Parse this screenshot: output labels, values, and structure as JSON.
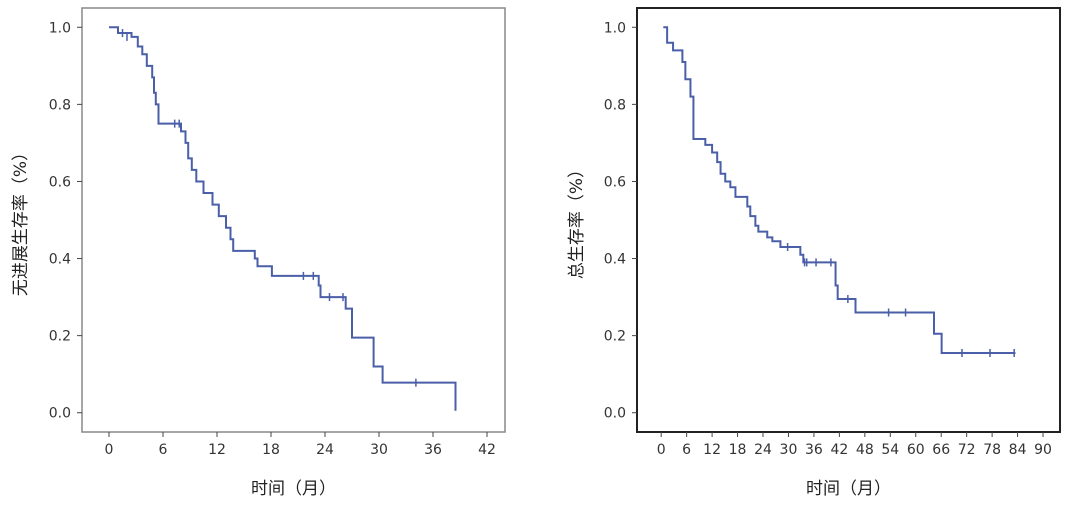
{
  "chart_data": [
    {
      "type": "line",
      "subtype": "kaplan-meier-step",
      "title": "",
      "xlabel": "时间（月）",
      "ylabel": "无进展生存率（%）",
      "xlim": [
        -3,
        44
      ],
      "ylim": [
        -0.05,
        1.05
      ],
      "xticks": [
        0,
        6,
        12,
        18,
        24,
        30,
        36,
        42
      ],
      "yticks": [
        "0.0",
        "0.2",
        "0.4",
        "0.6",
        "0.8",
        "1.0"
      ],
      "color": "#4a5fa8",
      "steps": [
        [
          0,
          1.0
        ],
        [
          1.0,
          0.985
        ],
        [
          2.5,
          0.975
        ],
        [
          3.2,
          0.95
        ],
        [
          3.7,
          0.93
        ],
        [
          4.2,
          0.9
        ],
        [
          4.8,
          0.87
        ],
        [
          5.0,
          0.83
        ],
        [
          5.2,
          0.8
        ],
        [
          5.5,
          0.75
        ],
        [
          8.0,
          0.73
        ],
        [
          8.5,
          0.7
        ],
        [
          8.8,
          0.66
        ],
        [
          9.2,
          0.63
        ],
        [
          9.7,
          0.6
        ],
        [
          10.5,
          0.57
        ],
        [
          11.5,
          0.54
        ],
        [
          12.2,
          0.51
        ],
        [
          13.0,
          0.48
        ],
        [
          13.5,
          0.45
        ],
        [
          13.8,
          0.42
        ],
        [
          16.2,
          0.4
        ],
        [
          16.5,
          0.38
        ],
        [
          18.1,
          0.355
        ],
        [
          23.3,
          0.33
        ],
        [
          23.5,
          0.3
        ],
        [
          26.3,
          0.27
        ],
        [
          27.0,
          0.195
        ],
        [
          29.4,
          0.12
        ],
        [
          30.4,
          0.078
        ],
        [
          38.5,
          0.005
        ]
      ],
      "end": 38.5,
      "censored": [
        [
          1.5,
          0.985
        ],
        [
          2.0,
          0.975
        ],
        [
          7.3,
          0.75
        ],
        [
          7.8,
          0.75
        ],
        [
          21.6,
          0.355
        ],
        [
          22.7,
          0.355
        ],
        [
          24.5,
          0.3
        ],
        [
          26.0,
          0.3
        ],
        [
          34.1,
          0.078
        ]
      ]
    },
    {
      "type": "line",
      "subtype": "kaplan-meier-step",
      "title": "",
      "xlabel": "时间（月）",
      "ylabel": "总生存率（%）",
      "xlim": [
        -5.7,
        94
      ],
      "ylim": [
        -0.05,
        1.05
      ],
      "xticks": [
        0,
        6,
        12,
        18,
        24,
        30,
        36,
        42,
        48,
        54,
        60,
        66,
        72,
        78,
        84,
        90
      ],
      "yticks": [
        "0.0",
        "0.2",
        "0.4",
        "0.6",
        "0.8",
        "1.0"
      ],
      "color": "#4a5fa8",
      "steps": [
        [
          0.5,
          1.0
        ],
        [
          1.4,
          0.96
        ],
        [
          2.8,
          0.94
        ],
        [
          5.0,
          0.91
        ],
        [
          5.7,
          0.865
        ],
        [
          6.9,
          0.82
        ],
        [
          7.6,
          0.71
        ],
        [
          10.4,
          0.695
        ],
        [
          12.0,
          0.675
        ],
        [
          13.2,
          0.65
        ],
        [
          14.0,
          0.62
        ],
        [
          15.1,
          0.6
        ],
        [
          16.3,
          0.585
        ],
        [
          17.5,
          0.56
        ],
        [
          20.3,
          0.535
        ],
        [
          21.0,
          0.51
        ],
        [
          22.2,
          0.485
        ],
        [
          22.9,
          0.47
        ],
        [
          25.0,
          0.455
        ],
        [
          26.2,
          0.445
        ],
        [
          28.1,
          0.43
        ],
        [
          32.8,
          0.41
        ],
        [
          33.5,
          0.39
        ],
        [
          41.1,
          0.33
        ],
        [
          41.6,
          0.295
        ],
        [
          45.8,
          0.26
        ],
        [
          64.3,
          0.205
        ],
        [
          66.1,
          0.155
        ]
      ],
      "end": 83.5,
      "censored": [
        [
          29.8,
          0.43
        ],
        [
          33.8,
          0.39
        ],
        [
          34.3,
          0.39
        ],
        [
          36.5,
          0.39
        ],
        [
          40.0,
          0.39
        ],
        [
          44.0,
          0.295
        ],
        [
          53.6,
          0.26
        ],
        [
          57.6,
          0.26
        ],
        [
          70.9,
          0.155
        ],
        [
          77.5,
          0.155
        ],
        [
          83.2,
          0.155
        ]
      ]
    }
  ]
}
